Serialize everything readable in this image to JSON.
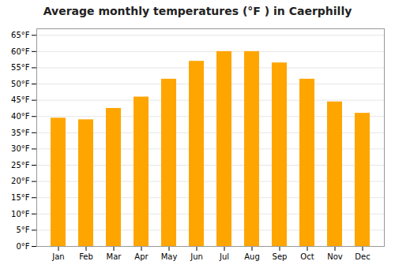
{
  "chart_data": {
    "type": "bar",
    "title": "Average monthly temperatures (°F ) in Caerphilly",
    "categories": [
      "Jan",
      "Feb",
      "Mar",
      "Apr",
      "May",
      "Jun",
      "Jul",
      "Aug",
      "Sep",
      "Oct",
      "Nov",
      "Dec"
    ],
    "values": [
      39.5,
      39.0,
      42.5,
      46.0,
      51.5,
      57.0,
      60.0,
      60.0,
      56.5,
      51.5,
      44.5,
      41.0
    ],
    "color": "#FFA500",
    "ylim": [
      0,
      67
    ],
    "yticks": [
      {
        "value": 0,
        "label": "0°F"
      },
      {
        "value": 5,
        "label": "5°F"
      },
      {
        "value": 10,
        "label": "10°F"
      },
      {
        "value": 15,
        "label": "15°F"
      },
      {
        "value": 20,
        "label": "20°F"
      },
      {
        "value": 25,
        "label": "25°F"
      },
      {
        "value": 30,
        "label": "30°F"
      },
      {
        "value": 35,
        "label": "35°F"
      },
      {
        "value": 40,
        "label": "40°F"
      },
      {
        "value": 45,
        "label": "45°F"
      },
      {
        "value": 50,
        "label": "50°F"
      },
      {
        "value": 55,
        "label": "55°F"
      },
      {
        "value": 60,
        "label": "60°F"
      },
      {
        "value": 65,
        "label": "65°F"
      }
    ],
    "grid": true
  }
}
